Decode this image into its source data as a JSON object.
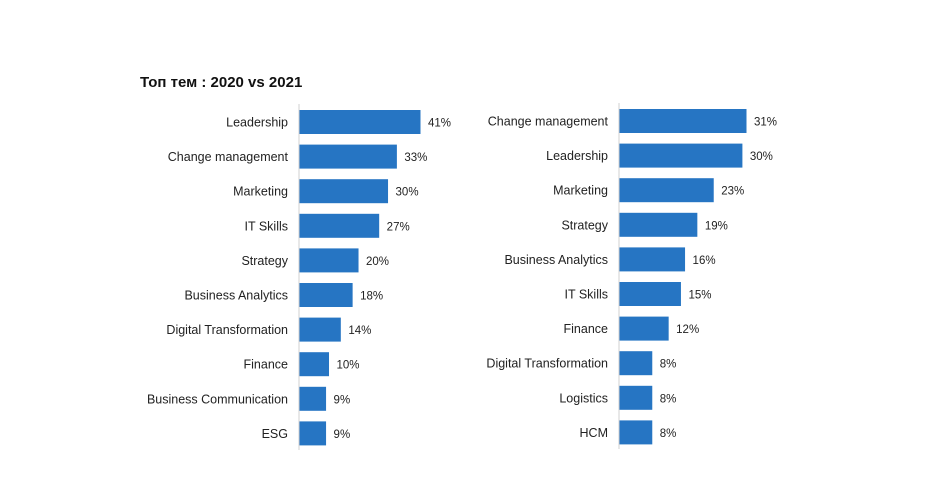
{
  "page": {
    "title": "Топ тем : 2020 vs 2021"
  },
  "colors": {
    "bar": "#2675C3",
    "axis": "#d0d0d0"
  },
  "chart_data": [
    {
      "type": "bar",
      "orientation": "horizontal",
      "categories": [
        "Leadership",
        "Change management",
        "Marketing",
        "IT Skills",
        "Strategy",
        "Business Analytics",
        "Digital Transformation",
        "Finance",
        "Business Communication",
        "ESG"
      ],
      "values": [
        41,
        33,
        30,
        27,
        20,
        18,
        14,
        10,
        9,
        9
      ],
      "value_labels": [
        "41%",
        "33%",
        "30%",
        "27%",
        "20%",
        "18%",
        "14%",
        "10%",
        "9%",
        "9%"
      ],
      "unit": "%",
      "xlim": [
        0,
        41
      ]
    },
    {
      "type": "bar",
      "orientation": "horizontal",
      "categories": [
        "Change management",
        "Leadership",
        "Marketing",
        "Strategy",
        "Business Analytics",
        "IT Skills",
        "Finance",
        "Digital Transformation",
        "Logistics",
        "HCM"
      ],
      "values": [
        31,
        30,
        23,
        19,
        16,
        15,
        12,
        8,
        8,
        8
      ],
      "value_labels": [
        "31%",
        "30%",
        "23%",
        "19%",
        "16%",
        "15%",
        "12%",
        "8%",
        "8%",
        "8%"
      ],
      "unit": "%",
      "xlim": [
        0,
        31
      ]
    }
  ]
}
